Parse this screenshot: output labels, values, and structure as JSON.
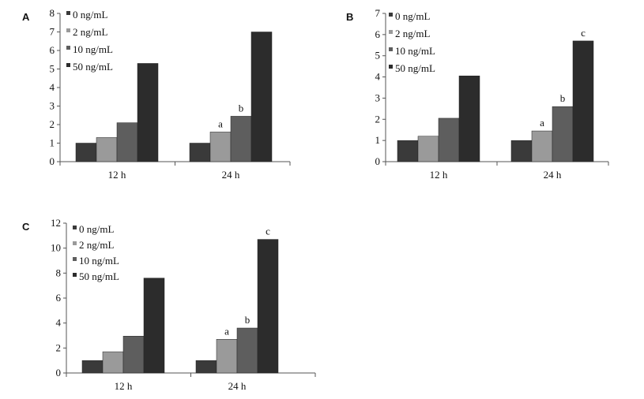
{
  "colors": {
    "series": [
      "#3a3a3a",
      "#9a9a9a",
      "#5e5e5e",
      "#2c2c2c"
    ]
  },
  "chart_data": [
    {
      "type": "bar",
      "panel_label": "A",
      "categories": [
        "12 h",
        "24 h"
      ],
      "ylim": [
        0,
        8
      ],
      "yticks": [
        "0",
        "1",
        "2",
        "3",
        "4",
        "5",
        "6",
        "7",
        "8"
      ],
      "legend_position": "top-left",
      "grid": false,
      "series": [
        {
          "name": "0 ng/mL",
          "values": [
            1,
            1
          ]
        },
        {
          "name": "2 ng/mL",
          "values": [
            1.3,
            1.6
          ]
        },
        {
          "name": "10 ng/mL",
          "values": [
            2.1,
            2.45
          ]
        },
        {
          "name": "50 ng/mL",
          "values": [
            5.3,
            7.0
          ]
        }
      ],
      "annotations": [
        {
          "category": "24 h",
          "series": "2 ng/mL",
          "text": "a"
        },
        {
          "category": "24 h",
          "series": "10 ng/mL",
          "text": "b"
        }
      ]
    },
    {
      "type": "bar",
      "panel_label": "B",
      "categories": [
        "12 h",
        "24 h"
      ],
      "ylim": [
        0,
        7
      ],
      "yticks": [
        "0",
        "1",
        "2",
        "3",
        "4",
        "5",
        "6",
        "7"
      ],
      "legend_position": "top-left",
      "grid": false,
      "series": [
        {
          "name": "0 ng/mL",
          "values": [
            1,
            1
          ]
        },
        {
          "name": "2 ng/mL",
          "values": [
            1.2,
            1.45
          ]
        },
        {
          "name": "10 ng/mL",
          "values": [
            2.05,
            2.6
          ]
        },
        {
          "name": "50 ng/mL",
          "values": [
            4.05,
            5.7
          ]
        }
      ],
      "annotations": [
        {
          "category": "24 h",
          "series": "2 ng/mL",
          "text": "a"
        },
        {
          "category": "24 h",
          "series": "10 ng/mL",
          "text": "b"
        },
        {
          "category": "24 h",
          "series": "50 ng/mL",
          "text": "c"
        }
      ]
    },
    {
      "type": "bar",
      "panel_label": "C",
      "categories": [
        "12 h",
        "24 h"
      ],
      "ylim": [
        0,
        12
      ],
      "yticks": [
        "0",
        "2",
        "4",
        "6",
        "8",
        "10",
        "12"
      ],
      "legend_position": "top-left",
      "grid": false,
      "series": [
        {
          "name": "0 ng/mL",
          "values": [
            1,
            1
          ]
        },
        {
          "name": "2 ng/mL",
          "values": [
            1.7,
            2.7
          ]
        },
        {
          "name": "10 ng/mL",
          "values": [
            2.95,
            3.6
          ]
        },
        {
          "name": "50 ng/mL",
          "values": [
            7.6,
            10.7
          ]
        }
      ],
      "annotations": [
        {
          "category": "24 h",
          "series": "2 ng/mL",
          "text": "a"
        },
        {
          "category": "24 h",
          "series": "10 ng/mL",
          "text": "b"
        },
        {
          "category": "24 h",
          "series": "50 ng/mL",
          "text": "c"
        }
      ]
    }
  ]
}
